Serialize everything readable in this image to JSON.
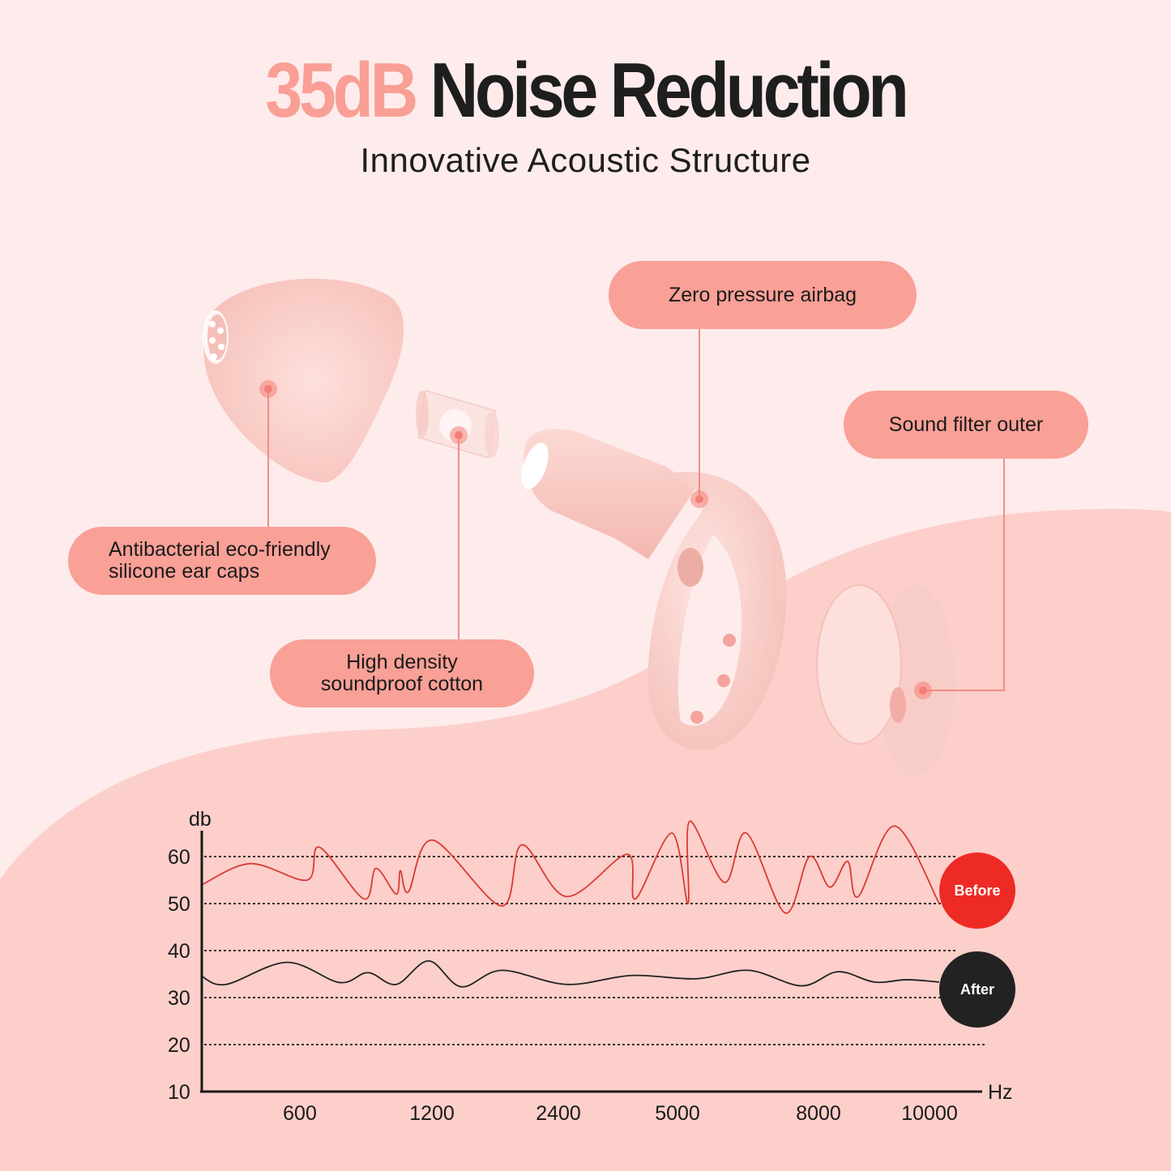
{
  "header": {
    "title_accent": "35dB",
    "title_main": "Noise Reduction",
    "subtitle": "Innovative Acoustic Structure"
  },
  "callouts": [
    {
      "id": "ear-caps",
      "lines": [
        "Antibacterial eco-friendly",
        "silicone ear caps"
      ]
    },
    {
      "id": "cotton",
      "lines": [
        "High density",
        "soundproof cotton"
      ]
    },
    {
      "id": "airbag",
      "lines": [
        "Zero pressure airbag"
      ]
    },
    {
      "id": "filter",
      "lines": [
        "Sound filter outer"
      ]
    }
  ],
  "colors": {
    "background": "#fdeceb",
    "wave": "#fccfca",
    "accent": "#f99f96",
    "callout_fill": "#f9a097",
    "before": "#ee2a24",
    "after": "#222222",
    "before_line": "#d93a34",
    "after_line": "#222222"
  },
  "legend": {
    "before": "Before",
    "after": "After"
  },
  "chart_data": {
    "type": "line",
    "title": "",
    "xlabel": "Hz",
    "ylabel": "db",
    "ylim": [
      10,
      65
    ],
    "yticks": [
      10,
      20,
      30,
      40,
      50,
      60
    ],
    "xticks": [
      "600",
      "1200",
      "2400",
      "5000",
      "8000",
      "10000"
    ],
    "grid": "horizontal dotted at 20,30,40,50,60",
    "legend_position": "right",
    "series": [
      {
        "name": "Before",
        "color": "#d93a34",
        "points": [
          [
            0,
            54
          ],
          [
            60,
            58.5
          ],
          [
            130,
            55
          ],
          [
            145,
            62
          ],
          [
            200,
            51
          ],
          [
            215,
            57.5
          ],
          [
            240,
            52
          ],
          [
            245,
            57
          ],
          [
            255,
            52.5
          ],
          [
            285,
            63.5
          ],
          [
            370,
            49.5
          ],
          [
            395,
            62.5
          ],
          [
            450,
            51.5
          ],
          [
            525,
            60.5
          ],
          [
            535,
            51
          ],
          [
            580,
            65
          ],
          [
            600,
            50
          ],
          [
            602,
            67.5
          ],
          [
            645,
            54.5
          ],
          [
            672,
            65
          ],
          [
            720,
            48
          ],
          [
            750,
            60
          ],
          [
            775,
            53.5
          ],
          [
            797,
            59
          ],
          [
            810,
            51.5
          ],
          [
            855,
            66.5
          ],
          [
            910,
            50
          ]
        ]
      },
      {
        "name": "After",
        "color": "#222222",
        "points": [
          [
            0,
            34.5
          ],
          [
            30,
            32.8
          ],
          [
            105,
            37.5
          ],
          [
            170,
            33.2
          ],
          [
            205,
            35.3
          ],
          [
            240,
            32.8
          ],
          [
            280,
            37.8
          ],
          [
            320,
            32.3
          ],
          [
            370,
            35.8
          ],
          [
            450,
            32.8
          ],
          [
            530,
            34.7
          ],
          [
            610,
            34
          ],
          [
            675,
            35.8
          ],
          [
            740,
            32.5
          ],
          [
            785,
            35.5
          ],
          [
            830,
            33.3
          ],
          [
            870,
            33.8
          ],
          [
            910,
            33.3
          ]
        ]
      }
    ]
  }
}
